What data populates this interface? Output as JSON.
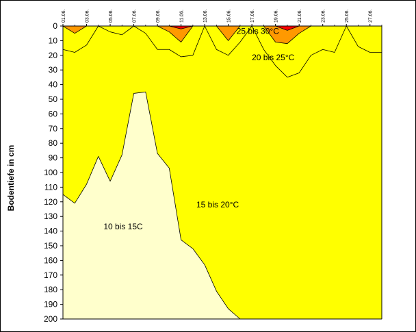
{
  "chart_data": {
    "type": "area",
    "ylabel": "Bodentiefe in cm",
    "ylim": [
      0,
      200
    ],
    "y_inverted": true,
    "yticks": [
      0,
      10,
      20,
      30,
      40,
      50,
      60,
      70,
      80,
      90,
      100,
      110,
      120,
      130,
      140,
      150,
      160,
      170,
      180,
      190,
      200
    ],
    "x_categories": [
      "01.06.",
      "03.06.",
      "05.06.",
      "07.06.",
      "09.06.",
      "11.06.",
      "13.06.",
      "15.06.",
      "17.06.",
      "19.06.",
      "21.06.",
      "23.06.",
      "25.06.",
      "27.06."
    ],
    "x": [
      0,
      1,
      2,
      3,
      4,
      5,
      6,
      7,
      8,
      9,
      10,
      11,
      12,
      13,
      14,
      15,
      16,
      17,
      18,
      19,
      20,
      21,
      22,
      23,
      24,
      25,
      26,
      27
    ],
    "series": [
      {
        "name": "10 bis 15C",
        "color": "#FFFFCC",
        "depths": [
          115,
          121,
          108,
          89,
          106,
          88,
          46,
          45,
          87,
          97,
          146,
          152,
          163,
          181,
          193,
          200,
          200,
          200,
          200,
          200,
          200,
          200,
          200,
          200,
          200,
          200,
          200,
          200
        ]
      },
      {
        "name": "15 bis 20°C",
        "color": "#FFFF00",
        "depths": [
          16,
          18,
          13,
          0,
          4,
          6,
          0,
          5,
          16,
          16,
          21,
          20,
          0,
          16,
          20,
          11,
          0,
          16,
          27,
          35,
          32,
          20,
          16,
          18,
          0,
          14,
          18,
          18
        ]
      },
      {
        "name": "20 bis 25°C",
        "color": "#FF9900",
        "depths": [
          0,
          5,
          0,
          0,
          0,
          0,
          0,
          0,
          0,
          4,
          11,
          0,
          0,
          0,
          10,
          0,
          0,
          0,
          11,
          12,
          5,
          0,
          0,
          0,
          0,
          0,
          0,
          0
        ]
      },
      {
        "name": "25 bis 30°C",
        "color": "#FF0000",
        "depths": [
          0,
          0,
          0,
          0,
          0,
          0,
          0,
          0,
          0,
          0,
          2,
          0,
          0,
          0,
          0,
          0,
          0,
          0,
          0,
          3,
          0,
          0,
          0,
          0,
          0,
          0,
          0,
          0
        ]
      },
      {
        "name": "",
        "color": "#3333CC",
        "depths": [
          0,
          0,
          0,
          0,
          0,
          0,
          0,
          0,
          0,
          0,
          0,
          0,
          0,
          0,
          0,
          0,
          0,
          0,
          0,
          0,
          0,
          0,
          0,
          0,
          0,
          0,
          0,
          0
        ]
      }
    ],
    "region_labels": [
      {
        "text": "25 bis 30°C",
        "x": 16.5,
        "y": 3.5
      },
      {
        "text": "20 bis 25°C",
        "x": 17.8,
        "y": 21.5
      },
      {
        "text": "15 bis 20°C",
        "x": 13.1,
        "y": 122
      },
      {
        "text": "10 bis 15C",
        "x": 5.1,
        "y": 137
      }
    ],
    "grid": false,
    "legend": "none"
  }
}
